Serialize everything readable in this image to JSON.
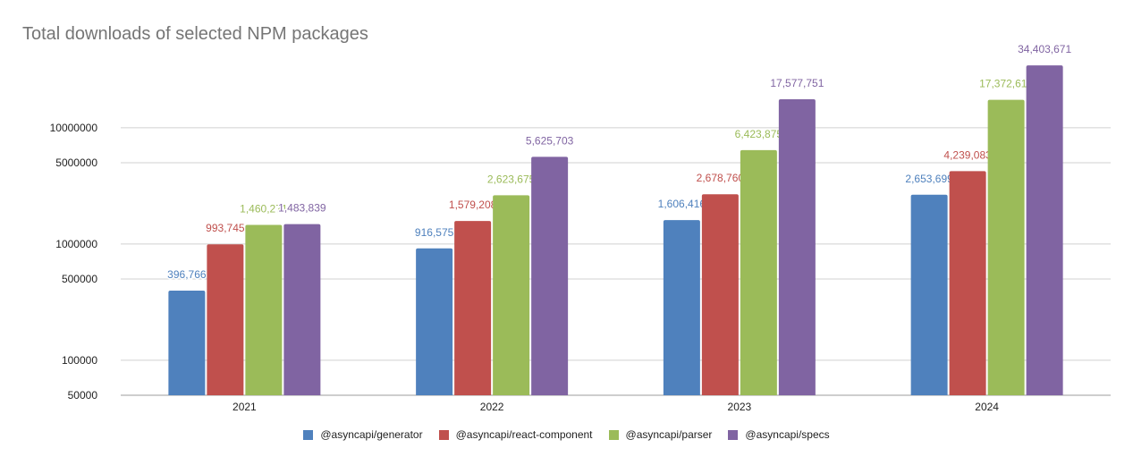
{
  "chart_data": {
    "type": "bar",
    "title": "Total downloads of selected NPM packages",
    "xlabel": "",
    "ylabel": "",
    "yscale": "log",
    "ylim": [
      50000,
      60000000
    ],
    "yticks": [
      50000,
      100000,
      500000,
      1000000,
      5000000,
      10000000
    ],
    "ytick_labels": [
      "50000",
      "100000",
      "500000",
      "1000000",
      "5000000",
      "10000000"
    ],
    "grid": true,
    "legend": "bottom",
    "categories": [
      "2021",
      "2022",
      "2023",
      "2024"
    ],
    "series": [
      {
        "name": "@asyncapi/generator",
        "color": "#4f81bd",
        "values": [
          396766,
          916575,
          1606416,
          2653699
        ],
        "labels": [
          "396,766",
          "916,575",
          "1,606,416",
          "2,653,699"
        ]
      },
      {
        "name": "@asyncapi/react-component",
        "color": "#c0504d",
        "values": [
          993745,
          1579208,
          2678760,
          4239083
        ],
        "labels": [
          "993,745",
          "1,579,208",
          "2,678,760",
          "4,239,083"
        ]
      },
      {
        "name": "@asyncapi/parser",
        "color": "#9bbb59",
        "values": [
          1460271,
          2623675,
          6423875,
          17372617
        ],
        "labels": [
          "1,460,271",
          "2,623,675",
          "6,423,875",
          "17,372,617"
        ]
      },
      {
        "name": "@asyncapi/specs",
        "color": "#8064a2",
        "values": [
          1483839,
          5625703,
          17577751,
          34403671
        ],
        "labels": [
          "1,483,839",
          "5,625,703",
          "17,577,751",
          "34,403,671"
        ]
      }
    ]
  }
}
